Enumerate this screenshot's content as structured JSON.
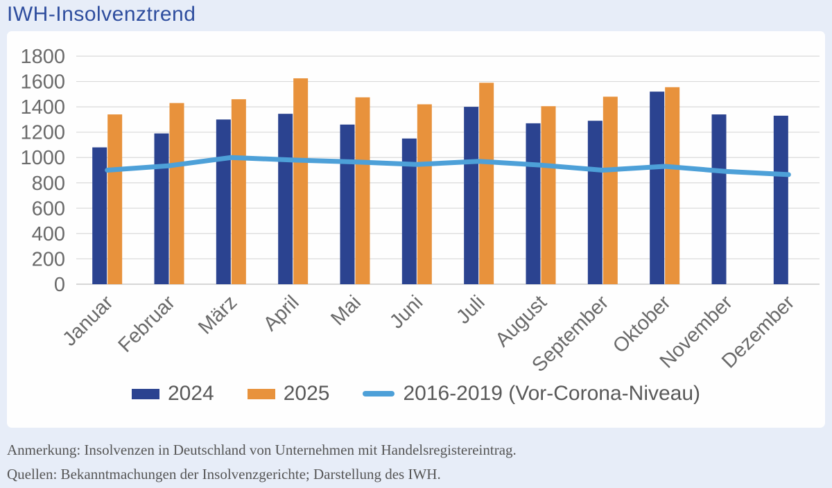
{
  "page": {
    "title": "IWH-Insolvenztrend",
    "notes": [
      "Anmerkung: Insolvenzen in Deutschland von Unternehmen mit Handelsregistereintrag.",
      "Quellen: Bekanntmachungen der Insolvenzgerichte; Darstellung des IWH."
    ]
  },
  "colors": {
    "background": "#e7edf8",
    "panel": "#fefefe",
    "title": "#2e4d9e",
    "bar_2024": "#2b4390",
    "bar_2025": "#e8923c",
    "line_2016_2019": "#4da0d8",
    "grid": "#d9d9d9",
    "zero_axis": "#c9c9c9",
    "axis_text": "#6a6a6a"
  },
  "chart_data": {
    "type": "bar",
    "title": "IWH-Insolvenztrend",
    "xlabel": "",
    "ylabel": "",
    "ylim": [
      0,
      1800
    ],
    "ytick_step": 200,
    "grid": "horizontal",
    "legend_position": "bottom",
    "categories": [
      "Januar",
      "Februar",
      "März",
      "April",
      "Mai",
      "Juni",
      "Juli",
      "August",
      "September",
      "Oktober",
      "November",
      "Dezember"
    ],
    "series": [
      {
        "name": "2024",
        "type": "bar",
        "color_key": "bar_2024",
        "values": [
          1080,
          1190,
          1300,
          1345,
          1260,
          1150,
          1400,
          1270,
          1290,
          1520,
          1340,
          1330
        ]
      },
      {
        "name": "2025",
        "type": "bar",
        "color_key": "bar_2025",
        "values": [
          1340,
          1430,
          1460,
          1625,
          1475,
          1420,
          1590,
          1405,
          1480,
          1555,
          null,
          null
        ]
      },
      {
        "name": "2016-2019 (Vor-Corona-Niveau)",
        "type": "line",
        "color_key": "line_2016_2019",
        "values": [
          900,
          935,
          1000,
          980,
          965,
          945,
          970,
          940,
          900,
          930,
          890,
          865
        ]
      }
    ]
  }
}
